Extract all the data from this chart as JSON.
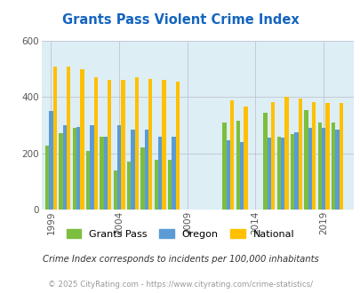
{
  "title": "Grants Pass Violent Crime Index",
  "title_color": "#1565c0",
  "bg_color": "#ddeef5",
  "fig_bg": "#ffffff",
  "subtitle": "Crime Index corresponds to incidents per 100,000 inhabitants",
  "copyright": "© 2025 CityRating.com - https://www.cityrating.com/crime-statistics/",
  "years": [
    1999,
    2000,
    2001,
    2002,
    2003,
    2004,
    2005,
    2006,
    2007,
    2008,
    2012,
    2013,
    2015,
    2016,
    2017,
    2018,
    2019,
    2020
  ],
  "grants_pass": [
    228,
    272,
    290,
    210,
    260,
    140,
    170,
    222,
    178,
    178,
    310,
    315,
    345,
    260,
    270,
    355,
    310,
    310
  ],
  "oregon": [
    350,
    300,
    295,
    300,
    260,
    300,
    285,
    285,
    260,
    260,
    248,
    240,
    255,
    255,
    275,
    290,
    290,
    285
  ],
  "national": [
    508,
    508,
    500,
    472,
    460,
    462,
    470,
    465,
    460,
    455,
    388,
    368,
    382,
    400,
    395,
    383,
    378,
    378
  ],
  "xticks": [
    1999,
    2004,
    2009,
    2014,
    2019
  ],
  "ylim": [
    0,
    600
  ],
  "yticks": [
    0,
    200,
    400,
    600
  ],
  "gp_color": "#7cbe3e",
  "or_color": "#5b9bd5",
  "nat_color": "#ffc000",
  "bar_width": 0.28
}
